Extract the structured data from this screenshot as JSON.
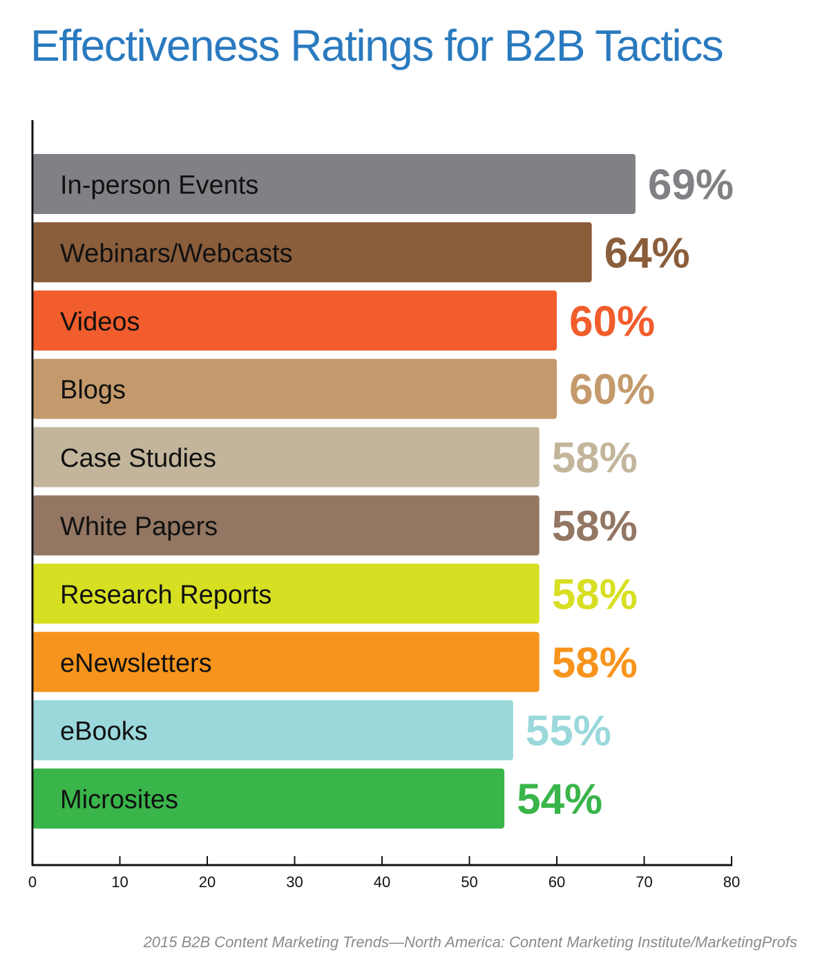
{
  "chart_data": {
    "type": "bar",
    "orientation": "horizontal",
    "title": "Effectiveness Ratings for B2B Tactics",
    "source": "2015 B2B Content Marketing Trends—North America: Content Marketing Institute/MarketingProfs",
    "xlim": [
      0,
      80
    ],
    "x_ticks": [
      0,
      10,
      20,
      30,
      40,
      50,
      60,
      70,
      80
    ],
    "grid": false,
    "categories": [
      "In-person Events",
      "Webinars/Webcasts",
      "Videos",
      "Blogs",
      "Case Studies",
      "White Papers",
      "Research Reports",
      "eNewsletters",
      "eBooks",
      "Microsites"
    ],
    "values": [
      69,
      64,
      60,
      60,
      58,
      58,
      58,
      58,
      55,
      54
    ],
    "value_labels": [
      "69%",
      "64%",
      "60%",
      "60%",
      "58%",
      "58%",
      "58%",
      "58%",
      "55%",
      "54%"
    ],
    "bar_colors": [
      "#808184",
      "#8a5d3b",
      "#f15d2c",
      "#c49a6c",
      "#c3b59c",
      "#937763",
      "#d7df23",
      "#f7941d",
      "#9ad8db",
      "#39b54a"
    ],
    "label_text_color": "#111111",
    "title_color": "#2a7abf",
    "axis_color": "#111111",
    "source_color": "#8a8a8a"
  }
}
